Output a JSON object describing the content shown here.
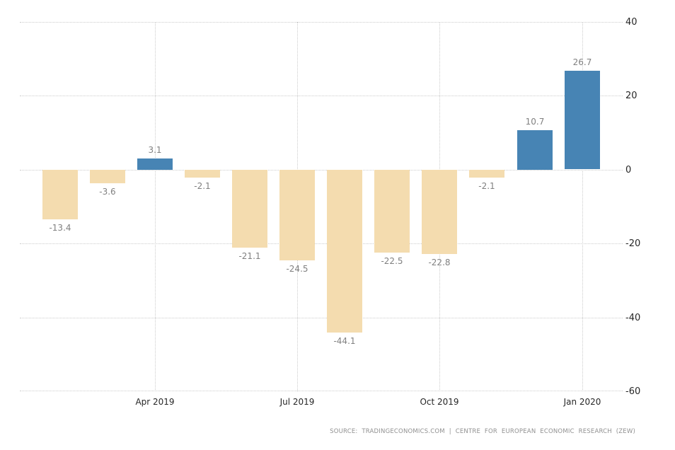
{
  "chart_data": {
    "type": "bar",
    "title": "",
    "values": [
      -13.4,
      -3.6,
      3.1,
      -2.1,
      -21.1,
      -24.5,
      -44.1,
      -22.5,
      -22.8,
      -2.1,
      10.7,
      26.7
    ],
    "x_ticks": [
      {
        "label": "Apr 2019",
        "bar_index": 2
      },
      {
        "label": "Jul 2019",
        "bar_index": 5
      },
      {
        "label": "Oct 2019",
        "bar_index": 8
      },
      {
        "label": "Jan 2020",
        "bar_index": 11
      }
    ],
    "y_ticks": [
      40,
      20,
      0,
      -20,
      -40,
      -60
    ],
    "ylim": [
      -60,
      40
    ],
    "grid": "dotted",
    "legend": "none",
    "bar_color_rule": "positive values blue, negative values beige",
    "colors": {
      "positive_bar": "#4784B4",
      "negative_bar": "#F4DCAF",
      "gridline": "#CCCCCC",
      "value_label": "#808080",
      "axis_label": "#262626",
      "source_text": "#909090"
    },
    "source": "SOURCE: TRADINGECONOMICS.COM | CENTRE FOR EUROPEAN ECONOMIC RESEARCH (ZEW)"
  }
}
